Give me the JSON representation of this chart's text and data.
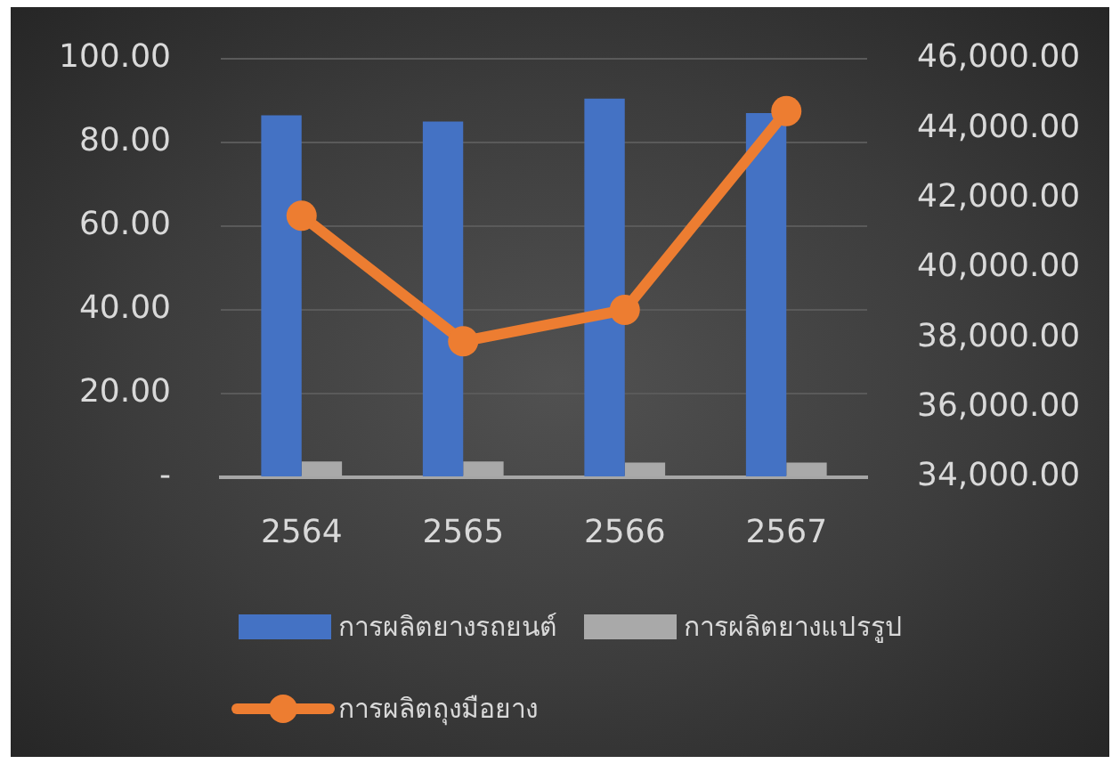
{
  "chart_data": {
    "type": "bar",
    "categories": [
      "2564",
      "2565",
      "2566",
      "2567"
    ],
    "series": [
      {
        "name": "การผลิตยางรถยนต์",
        "color": "#4472c4",
        "values": [
          86.5,
          85,
          90.5,
          87
        ]
      },
      {
        "name": "การผลิตยางแปรรูป",
        "color": "#a9a9a9",
        "values": [
          3.8,
          3.8,
          3.5,
          3.5
        ]
      },
      {
        "name": "การผลิตถุงมือยาง",
        "type": "line",
        "axis": "y2",
        "color": "#ed7d31",
        "values": [
          41500,
          37900,
          38800,
          44500
        ]
      }
    ],
    "ylim": [
      0,
      100
    ],
    "yticks": [
      {
        "value": 0,
        "label": "-"
      },
      {
        "value": 20,
        "label": "20.00"
      },
      {
        "value": 40,
        "label": "40.00"
      },
      {
        "value": 60,
        "label": "60.00"
      },
      {
        "value": 80,
        "label": "80.00"
      },
      {
        "value": 100,
        "label": "100.00"
      }
    ],
    "y2lim": [
      34000,
      46000
    ],
    "y2ticks": [
      {
        "value": 34000,
        "label": "34,000.00"
      },
      {
        "value": 36000,
        "label": "36,000.00"
      },
      {
        "value": 38000,
        "label": "38,000.00"
      },
      {
        "value": 40000,
        "label": "40,000.00"
      },
      {
        "value": 42000,
        "label": "42,000.00"
      },
      {
        "value": 44000,
        "label": "44,000.00"
      },
      {
        "value": 46000,
        "label": "46,000.00"
      }
    ],
    "grid": "y",
    "legend": "bottom",
    "marker": "circle"
  }
}
